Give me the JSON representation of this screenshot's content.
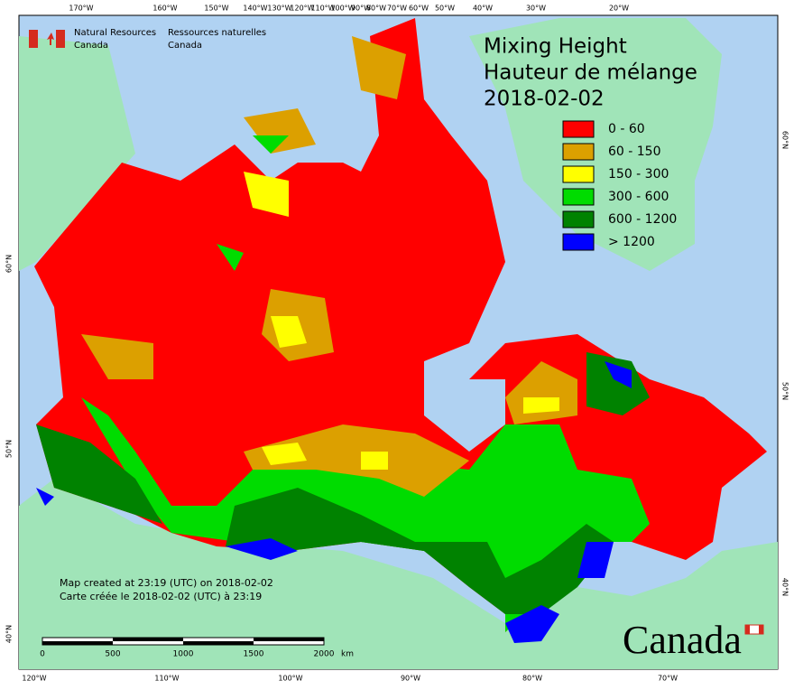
{
  "header": {
    "org_en": [
      "Natural Resources",
      "Canada"
    ],
    "org_fr": [
      "Ressources naturelles",
      "Canada"
    ]
  },
  "title": [
    "Mixing Height",
    "Hauteur de mélange",
    "2018-02-02"
  ],
  "legend": [
    {
      "label": "0 - 60",
      "color": "#ff0000"
    },
    {
      "label": "60 - 150",
      "color": "#dca000"
    },
    {
      "label": "150 - 300",
      "color": "#ffff00"
    },
    {
      "label": "300 - 600",
      "color": "#00dc00"
    },
    {
      "label": "600 - 1200",
      "color": "#008200"
    },
    {
      "label": "> 1200",
      "color": "#0000ff"
    }
  ],
  "graticule": {
    "top": [
      "170°W",
      "160°W",
      "150°W",
      "140°W",
      "130°W",
      "120°W",
      "110°W",
      "100°W",
      "90°W",
      "80°W",
      "70°W",
      "60°W",
      "50°W",
      "40°W",
      "30°W",
      "20°W"
    ],
    "bottom": [
      "120°W",
      "110°W",
      "100°W",
      "90°W",
      "80°W",
      "70°W"
    ],
    "left": [
      "60°N",
      "50°N",
      "40°N"
    ],
    "right": [
      "60°N",
      "50°N",
      "40°N"
    ]
  },
  "note": [
    "Map created at 23:19 (UTC) on 2018-02-02",
    "Carte créée le 2018-02-02 (UTC) à 23:19"
  ],
  "scale": {
    "ticks": [
      "0",
      "500",
      "1000",
      "1500",
      "2000"
    ],
    "unit": "km"
  },
  "wordmark": "Canada"
}
